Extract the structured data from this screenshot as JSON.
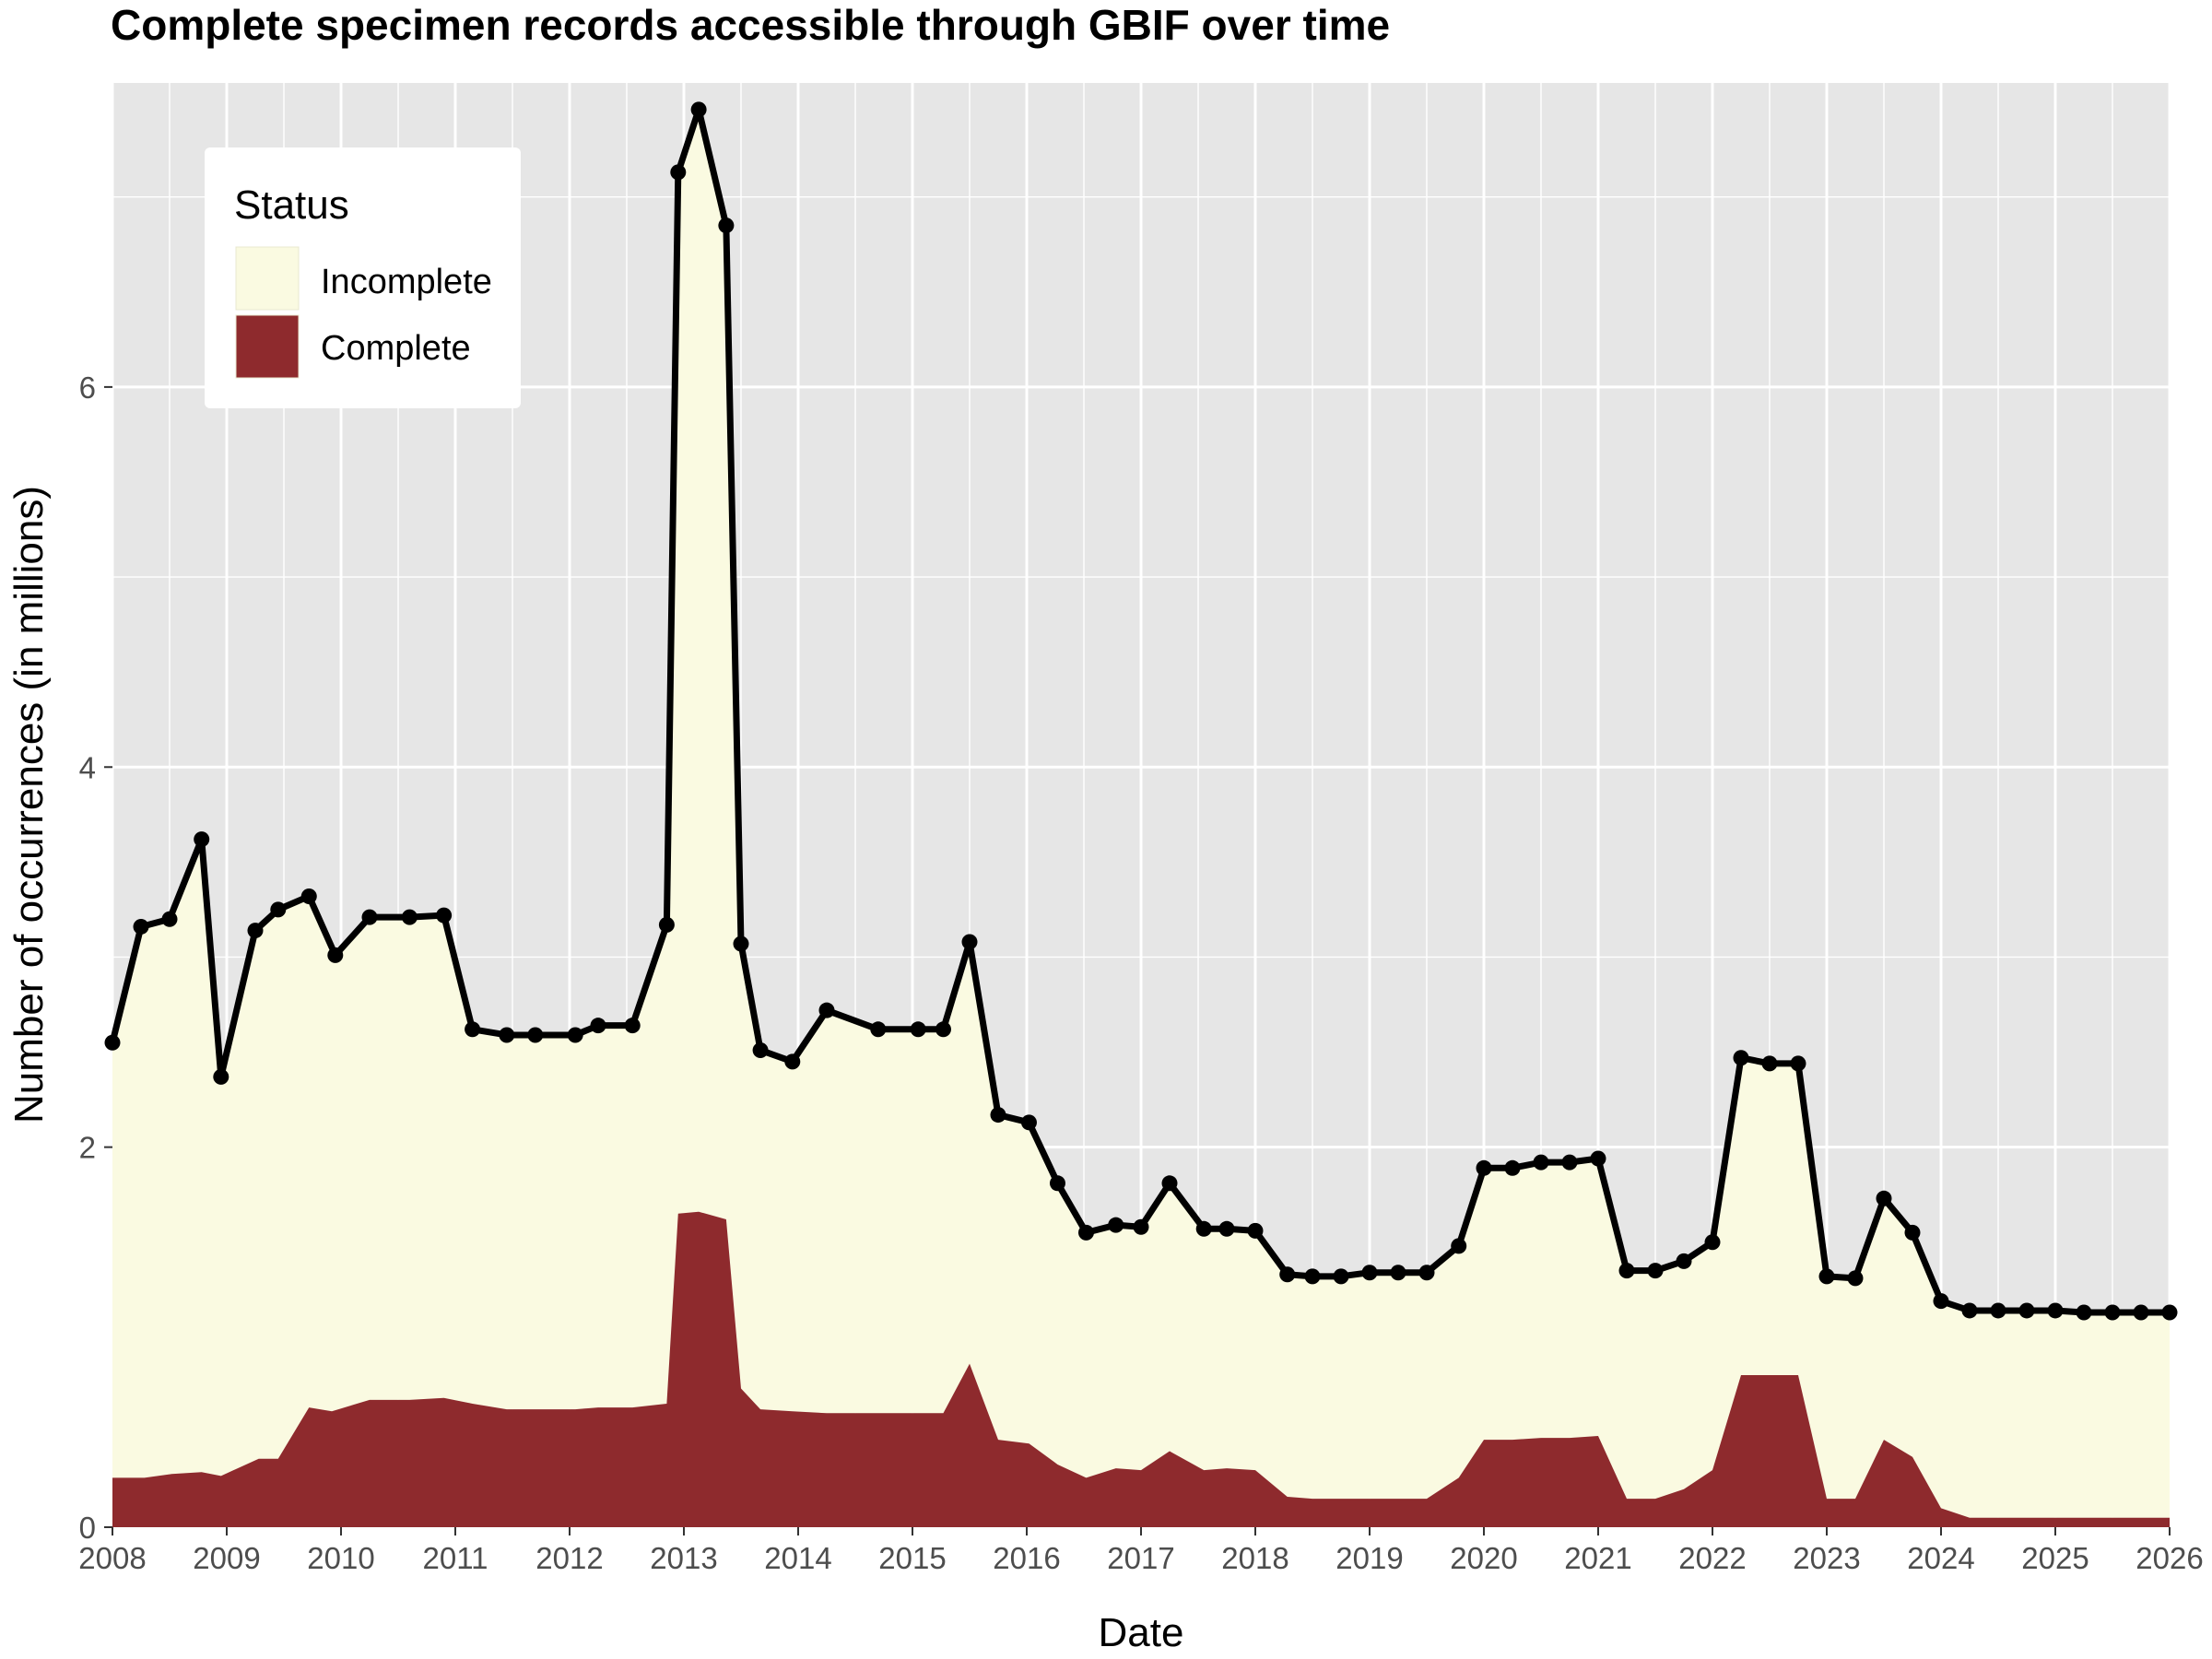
{
  "chart_data": {
    "type": "area",
    "title": "Complete specimen records accessible through GBIF over time",
    "xlabel": "Date",
    "ylabel": "Number of occurrences (in millions)",
    "xlim": [
      2008,
      2026
    ],
    "ylim": [
      0,
      7.6
    ],
    "x_ticks": [
      2008,
      2009,
      2010,
      2011,
      2012,
      2013,
      2014,
      2015,
      2016,
      2017,
      2018,
      2019,
      2020,
      2021,
      2022,
      2023,
      2024,
      2025,
      2026
    ],
    "y_ticks": [
      0,
      2,
      4,
      6
    ],
    "grid": true,
    "legend": {
      "title": "Status",
      "position": "top-left",
      "entries": [
        "Incomplete",
        "Complete"
      ]
    },
    "colors": {
      "incomplete": "#fafae1",
      "complete": "#8e2a2d",
      "total_line": "#000000",
      "panel": "#e6e6e6",
      "grid": "#ffffff"
    },
    "series": [
      {
        "name": "Complete",
        "x": [
          2008.0,
          2008.28,
          2008.52,
          2008.78,
          2008.95,
          2009.28,
          2009.45,
          2009.72,
          2009.92,
          2010.25,
          2010.6,
          2010.9,
          2011.15,
          2011.45,
          2011.7,
          2012.05,
          2012.25,
          2012.55,
          2012.85,
          2012.95,
          2013.13,
          2013.37,
          2013.5,
          2013.67,
          2013.95,
          2014.25,
          2014.7,
          2015.05,
          2015.27,
          2015.5,
          2015.75,
          2016.02,
          2016.27,
          2016.52,
          2016.78,
          2017.0,
          2017.25,
          2017.55,
          2017.75,
          2018.0,
          2018.28,
          2018.5,
          2018.75,
          2019.0,
          2019.25,
          2019.5,
          2019.78,
          2020.0,
          2020.25,
          2020.5,
          2020.75,
          2021.0,
          2021.25,
          2021.5,
          2021.75,
          2022.0,
          2022.25,
          2022.5,
          2022.75,
          2023.0,
          2023.25,
          2023.5,
          2023.75,
          2024.0,
          2024.25,
          2024.5,
          2024.75,
          2025.0,
          2025.25,
          2025.5,
          2025.75,
          2026.0
        ],
        "values": [
          0.26,
          0.26,
          0.28,
          0.29,
          0.27,
          0.36,
          0.36,
          0.63,
          0.61,
          0.67,
          0.67,
          0.68,
          0.65,
          0.62,
          0.62,
          0.62,
          0.63,
          0.63,
          0.65,
          1.65,
          1.66,
          1.62,
          0.73,
          0.62,
          0.61,
          0.6,
          0.6,
          0.6,
          0.6,
          0.86,
          0.46,
          0.44,
          0.33,
          0.26,
          0.31,
          0.3,
          0.4,
          0.3,
          0.31,
          0.3,
          0.16,
          0.15,
          0.15,
          0.15,
          0.15,
          0.15,
          0.26,
          0.46,
          0.46,
          0.47,
          0.47,
          0.48,
          0.15,
          0.15,
          0.2,
          0.3,
          0.8,
          0.8,
          0.8,
          0.15,
          0.15,
          0.46,
          0.37,
          0.1,
          0.05,
          0.05,
          0.05,
          0.05,
          0.05,
          0.05,
          0.05,
          0.05
        ]
      },
      {
        "name": "Incomplete",
        "x": [
          2008.0,
          2008.25,
          2008.5,
          2008.78,
          2008.95,
          2009.25,
          2009.45,
          2009.72,
          2009.95,
          2010.25,
          2010.6,
          2010.9,
          2011.15,
          2011.45,
          2011.7,
          2012.05,
          2012.25,
          2012.55,
          2012.85,
          2012.95,
          2013.13,
          2013.37,
          2013.5,
          2013.67,
          2013.95,
          2014.25,
          2014.7,
          2015.05,
          2015.27,
          2015.5,
          2015.75,
          2016.02,
          2016.27,
          2016.52,
          2016.78,
          2017.0,
          2017.25,
          2017.55,
          2017.75,
          2018.0,
          2018.28,
          2018.5,
          2018.75,
          2019.0,
          2019.25,
          2019.5,
          2019.78,
          2020.0,
          2020.25,
          2020.5,
          2020.75,
          2021.0,
          2021.25,
          2021.5,
          2021.75,
          2022.0,
          2022.25,
          2022.5,
          2022.75,
          2023.0,
          2023.25,
          2023.5,
          2023.75,
          2024.0,
          2024.25,
          2024.5,
          2024.75,
          2025.0,
          2025.25,
          2025.5,
          2025.75,
          2026.0
        ],
        "values": [
          2.29,
          2.9,
          2.92,
          3.33,
          2.1,
          2.78,
          2.89,
          2.69,
          2.4,
          2.54,
          2.54,
          2.54,
          1.97,
          1.97,
          1.97,
          1.97,
          2.01,
          2.01,
          2.52,
          5.48,
          5.8,
          5.23,
          2.34,
          1.89,
          1.84,
          2.12,
          2.02,
          2.02,
          2.02,
          2.22,
          1.71,
          1.69,
          1.48,
          1.29,
          1.28,
          1.28,
          1.41,
          1.27,
          1.26,
          1.26,
          1.17,
          1.17,
          1.17,
          1.19,
          1.19,
          1.19,
          1.22,
          1.43,
          1.43,
          1.45,
          1.45,
          1.46,
          1.2,
          1.2,
          1.2,
          1.2,
          1.67,
          1.64,
          1.64,
          1.17,
          1.16,
          1.27,
          1.18,
          1.09,
          1.09,
          1.09,
          1.09,
          1.09,
          1.08,
          1.08,
          1.08,
          1.08
        ]
      }
    ]
  }
}
